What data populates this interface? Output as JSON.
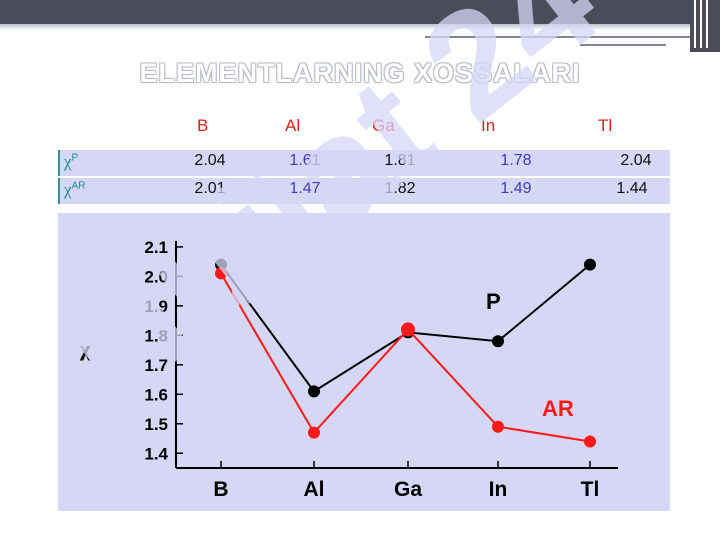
{
  "title": "ELEMENTLARNING XOSSALARI",
  "table": {
    "elements": [
      "B",
      "Al",
      "Ga",
      "In",
      "Tl"
    ],
    "rows": [
      {
        "symbol": "χ",
        "sup": "P",
        "values": [
          "2.04",
          "1.61",
          "1.81",
          "1.78",
          "2.04"
        ]
      },
      {
        "symbol": "χ",
        "sup": "AR",
        "values": [
          "2.01",
          "1.47",
          "1.82",
          "1.49",
          "1.44"
        ]
      }
    ]
  },
  "watermark": "Hujjat 24",
  "colors": {
    "title": "#ffffff",
    "header_red": "#e0201c",
    "row_label": "#1a8c95",
    "blue_value": "#3c3cbf",
    "panel": "#d6d6f5",
    "series_p": "#000000",
    "series_ar": "#ff1a1a"
  },
  "chart_data": {
    "type": "line",
    "categories": [
      "B",
      "Al",
      "Ga",
      "In",
      "Tl"
    ],
    "ylabel": "χ",
    "ylim": [
      1.35,
      2.12
    ],
    "yticks": [
      "1.4",
      "1.5",
      "1.6",
      "1.7",
      "1.8",
      "1.9",
      "2.0",
      "2.1"
    ],
    "series": [
      {
        "name": "P",
        "color": "#000000",
        "values": [
          2.04,
          1.61,
          1.81,
          1.78,
          2.04
        ]
      },
      {
        "name": "AR",
        "color": "#ff1a1a",
        "values": [
          2.01,
          1.47,
          1.82,
          1.49,
          1.44
        ]
      }
    ]
  }
}
